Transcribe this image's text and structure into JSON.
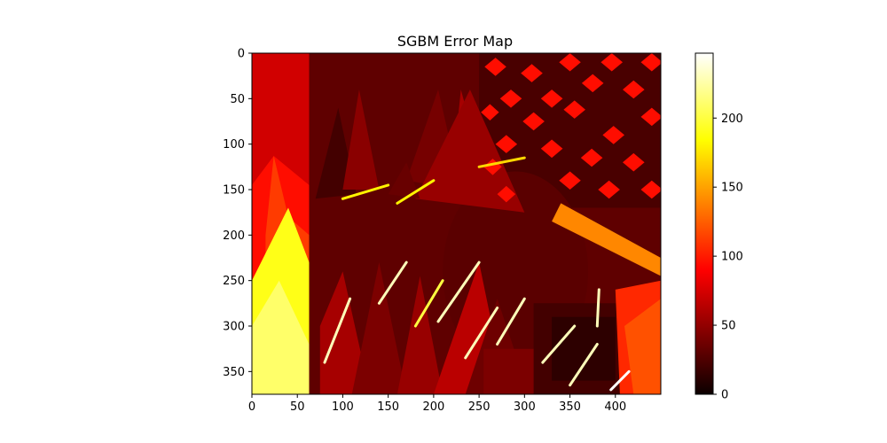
{
  "chart_data": {
    "type": "heatmap",
    "title": "SGBM Error Map",
    "xlabel": "",
    "ylabel": "",
    "image_size": {
      "width": 450,
      "height": 375
    },
    "xlim": [
      0,
      450
    ],
    "ylim": [
      375,
      0
    ],
    "xticks": [
      0,
      50,
      100,
      150,
      200,
      250,
      300,
      350,
      400
    ],
    "yticks": [
      0,
      50,
      100,
      150,
      200,
      250,
      300,
      350
    ],
    "colormap": "hot",
    "colormap_stops": [
      "#0b0000",
      "#ff0000",
      "#ffff00",
      "#ffffff"
    ],
    "colorbar": {
      "range": [
        0,
        247
      ],
      "ticks": [
        0,
        50,
        100,
        150,
        200
      ]
    },
    "regions": [
      {
        "name": "left-panel",
        "shape": "rect",
        "points": [
          [
            0,
            0
          ],
          [
            63,
            0
          ],
          [
            63,
            375
          ],
          [
            0,
            375
          ]
        ],
        "value": 70
      },
      {
        "name": "left-spike-orange",
        "shape": "poly",
        "points": [
          [
            0,
            145
          ],
          [
            24,
            113
          ],
          [
            63,
            145
          ],
          [
            63,
            250
          ],
          [
            0,
            250
          ]
        ],
        "value": 95
      },
      {
        "name": "left-spike-red",
        "shape": "poly",
        "points": [
          [
            15,
            200
          ],
          [
            24,
            113
          ],
          [
            40,
            180
          ],
          [
            63,
            200
          ],
          [
            63,
            290
          ],
          [
            15,
            290
          ]
        ],
        "value": 112
      },
      {
        "name": "left-yellow-low",
        "shape": "poly",
        "points": [
          [
            0,
            250
          ],
          [
            40,
            170
          ],
          [
            63,
            230
          ],
          [
            63,
            375
          ],
          [
            0,
            375
          ]
        ],
        "value": 190
      },
      {
        "name": "left-yellow-high",
        "shape": "poly",
        "points": [
          [
            0,
            300
          ],
          [
            30,
            250
          ],
          [
            63,
            320
          ],
          [
            63,
            375
          ],
          [
            0,
            375
          ]
        ],
        "value": 210
      },
      {
        "name": "background-dark",
        "shape": "rect",
        "points": [
          [
            63,
            0
          ],
          [
            450,
            0
          ],
          [
            450,
            375
          ],
          [
            63,
            375
          ]
        ],
        "value": 30
      },
      {
        "name": "upper-right-lattice-bg",
        "shape": "rect",
        "points": [
          [
            250,
            0
          ],
          [
            450,
            0
          ],
          [
            450,
            170
          ],
          [
            250,
            170
          ]
        ],
        "value": 22
      },
      {
        "name": "cone-1",
        "shape": "poly",
        "points": [
          [
            70,
            160
          ],
          [
            95,
            60
          ],
          [
            115,
            155
          ]
        ],
        "value": 20
      },
      {
        "name": "cone-2",
        "shape": "poly",
        "points": [
          [
            100,
            150
          ],
          [
            118,
            40
          ],
          [
            140,
            150
          ]
        ],
        "value": 45
      },
      {
        "name": "cone-3",
        "shape": "poly",
        "points": [
          [
            170,
            140
          ],
          [
            205,
            40
          ],
          [
            230,
            150
          ]
        ],
        "value": 38
      },
      {
        "name": "cone-4",
        "shape": "poly",
        "points": [
          [
            220,
            140
          ],
          [
            230,
            40
          ],
          [
            260,
            150
          ]
        ],
        "value": 55
      },
      {
        "name": "mask-oval",
        "shape": "ellipse",
        "center": [
          290,
          240
        ],
        "radii": [
          80,
          110
        ],
        "value": 28
      },
      {
        "name": "lower-cone-1",
        "shape": "poly",
        "points": [
          [
            75,
            375
          ],
          [
            75,
            300
          ],
          [
            100,
            240
          ],
          [
            130,
            375
          ]
        ],
        "value": 55
      },
      {
        "name": "lower-cone-2",
        "shape": "poly",
        "points": [
          [
            110,
            375
          ],
          [
            140,
            230
          ],
          [
            170,
            375
          ]
        ],
        "value": 40
      },
      {
        "name": "lower-cone-3",
        "shape": "poly",
        "points": [
          [
            160,
            375
          ],
          [
            185,
            245
          ],
          [
            210,
            375
          ]
        ],
        "value": 50
      },
      {
        "name": "lower-cone-4",
        "shape": "poly",
        "points": [
          [
            200,
            375
          ],
          [
            250,
            230
          ],
          [
            280,
            375
          ]
        ],
        "value": 62
      },
      {
        "name": "lower-center-cone",
        "shape": "poly",
        "points": [
          [
            235,
            375
          ],
          [
            270,
            270
          ],
          [
            305,
            375
          ]
        ],
        "value": 35
      },
      {
        "name": "bottom-box",
        "shape": "rect",
        "points": [
          [
            255,
            325
          ],
          [
            330,
            325
          ],
          [
            330,
            375
          ],
          [
            255,
            375
          ]
        ],
        "value": 40
      },
      {
        "name": "mug",
        "shape": "rect",
        "points": [
          [
            310,
            275
          ],
          [
            415,
            275
          ],
          [
            415,
            375
          ],
          [
            310,
            375
          ]
        ],
        "value": 20
      },
      {
        "name": "mug-shadow",
        "shape": "rect",
        "points": [
          [
            330,
            290
          ],
          [
            400,
            290
          ],
          [
            400,
            360
          ],
          [
            330,
            360
          ]
        ],
        "value": 12
      },
      {
        "name": "right-orange",
        "shape": "poly",
        "points": [
          [
            400,
            260
          ],
          [
            450,
            250
          ],
          [
            450,
            375
          ],
          [
            405,
            375
          ]
        ],
        "value": 105
      },
      {
        "name": "right-orange-hi",
        "shape": "poly",
        "points": [
          [
            410,
            300
          ],
          [
            450,
            270
          ],
          [
            450,
            375
          ],
          [
            420,
            375
          ]
        ],
        "value": 120
      },
      {
        "name": "upper-right-band",
        "shape": "poly",
        "points": [
          [
            340,
            165
          ],
          [
            450,
            225
          ],
          [
            450,
            245
          ],
          [
            330,
            185
          ]
        ],
        "value": 140
      },
      {
        "name": "upper-cone-red",
        "shape": "poly",
        "points": [
          [
            180,
            160
          ],
          [
            240,
            40
          ],
          [
            300,
            175
          ]
        ],
        "value": 50
      },
      {
        "name": "mask-upper-cone",
        "shape": "poly",
        "points": [
          [
            150,
            155
          ],
          [
            170,
            120
          ],
          [
            185,
            160
          ]
        ],
        "value": 33
      },
      {
        "name": "lattice-1",
        "shape": "diamond",
        "center": [
          268,
          15
        ],
        "radii": [
          12,
          10
        ],
        "value": 95
      },
      {
        "name": "lattice-2",
        "shape": "diamond",
        "center": [
          308,
          22
        ],
        "radii": [
          12,
          10
        ],
        "value": 95
      },
      {
        "name": "lattice-3",
        "shape": "diamond",
        "center": [
          350,
          10
        ],
        "radii": [
          12,
          10
        ],
        "value": 95
      },
      {
        "name": "lattice-4",
        "shape": "diamond",
        "center": [
          396,
          10
        ],
        "radii": [
          12,
          10
        ],
        "value": 95
      },
      {
        "name": "lattice-5",
        "shape": "diamond",
        "center": [
          440,
          10
        ],
        "radii": [
          12,
          10
        ],
        "value": 95
      },
      {
        "name": "lattice-6",
        "shape": "diamond",
        "center": [
          285,
          50
        ],
        "radii": [
          12,
          10
        ],
        "value": 95
      },
      {
        "name": "lattice-7",
        "shape": "diamond",
        "center": [
          330,
          50
        ],
        "radii": [
          12,
          10
        ],
        "value": 95
      },
      {
        "name": "lattice-8",
        "shape": "diamond",
        "center": [
          375,
          33
        ],
        "radii": [
          12,
          10
        ],
        "value": 95
      },
      {
        "name": "lattice-9",
        "shape": "diamond",
        "center": [
          420,
          40
        ],
        "radii": [
          12,
          10
        ],
        "value": 95
      },
      {
        "name": "lattice-10",
        "shape": "diamond",
        "center": [
          262,
          65
        ],
        "radii": [
          10,
          9
        ],
        "value": 95
      },
      {
        "name": "lattice-11",
        "shape": "diamond",
        "center": [
          310,
          75
        ],
        "radii": [
          12,
          10
        ],
        "value": 95
      },
      {
        "name": "lattice-12",
        "shape": "diamond",
        "center": [
          355,
          62
        ],
        "radii": [
          12,
          10
        ],
        "value": 95
      },
      {
        "name": "lattice-13",
        "shape": "diamond",
        "center": [
          398,
          90
        ],
        "radii": [
          12,
          10
        ],
        "value": 95
      },
      {
        "name": "lattice-14",
        "shape": "diamond",
        "center": [
          440,
          70
        ],
        "radii": [
          12,
          10
        ],
        "value": 95
      },
      {
        "name": "lattice-15",
        "shape": "diamond",
        "center": [
          280,
          100
        ],
        "radii": [
          12,
          10
        ],
        "value": 95
      },
      {
        "name": "lattice-16",
        "shape": "diamond",
        "center": [
          330,
          105
        ],
        "radii": [
          12,
          10
        ],
        "value": 95
      },
      {
        "name": "lattice-17",
        "shape": "diamond",
        "center": [
          374,
          115
        ],
        "radii": [
          12,
          10
        ],
        "value": 95
      },
      {
        "name": "lattice-18",
        "shape": "diamond",
        "center": [
          420,
          120
        ],
        "radii": [
          12,
          10
        ],
        "value": 95
      },
      {
        "name": "lattice-19",
        "shape": "diamond",
        "center": [
          265,
          125
        ],
        "radii": [
          10,
          9
        ],
        "value": 95
      },
      {
        "name": "lattice-20",
        "shape": "diamond",
        "center": [
          350,
          140
        ],
        "radii": [
          12,
          10
        ],
        "value": 95
      },
      {
        "name": "lattice-21",
        "shape": "diamond",
        "center": [
          393,
          150
        ],
        "radii": [
          12,
          10
        ],
        "value": 95
      },
      {
        "name": "lattice-22",
        "shape": "diamond",
        "center": [
          440,
          150
        ],
        "radii": [
          12,
          10
        ],
        "value": 95
      },
      {
        "name": "lattice-23",
        "shape": "diamond",
        "center": [
          280,
          155
        ],
        "radii": [
          10,
          9
        ],
        "value": 95
      },
      {
        "name": "edge-1",
        "shape": "line",
        "points": [
          [
            80,
            340
          ],
          [
            108,
            270
          ]
        ],
        "value": 230
      },
      {
        "name": "edge-2",
        "shape": "line",
        "points": [
          [
            140,
            275
          ],
          [
            170,
            230
          ]
        ],
        "value": 230
      },
      {
        "name": "edge-3",
        "shape": "line",
        "points": [
          [
            205,
            295
          ],
          [
            250,
            230
          ]
        ],
        "value": 230
      },
      {
        "name": "edge-4",
        "shape": "line",
        "points": [
          [
            235,
            335
          ],
          [
            270,
            280
          ]
        ],
        "value": 230
      },
      {
        "name": "edge-5",
        "shape": "line",
        "points": [
          [
            270,
            320
          ],
          [
            300,
            270
          ]
        ],
        "value": 230
      },
      {
        "name": "edge-6",
        "shape": "line",
        "points": [
          [
            320,
            340
          ],
          [
            355,
            300
          ]
        ],
        "value": 230
      },
      {
        "name": "edge-7",
        "shape": "line",
        "points": [
          [
            350,
            365
          ],
          [
            380,
            320
          ]
        ],
        "value": 230
      },
      {
        "name": "edge-8",
        "shape": "line",
        "points": [
          [
            395,
            370
          ],
          [
            415,
            350
          ]
        ],
        "value": 250
      },
      {
        "name": "edge-9",
        "shape": "line",
        "points": [
          [
            380,
            300
          ],
          [
            382,
            260
          ]
        ],
        "value": 230
      },
      {
        "name": "edge-10",
        "shape": "line",
        "points": [
          [
            100,
            160
          ],
          [
            150,
            145
          ]
        ],
        "value": 180
      },
      {
        "name": "edge-11",
        "shape": "line",
        "points": [
          [
            160,
            165
          ],
          [
            200,
            140
          ]
        ],
        "value": 180
      },
      {
        "name": "edge-12",
        "shape": "line",
        "points": [
          [
            250,
            125
          ],
          [
            300,
            115
          ]
        ],
        "value": 170
      },
      {
        "name": "edge-13",
        "shape": "line",
        "points": [
          [
            180,
            300
          ],
          [
            210,
            250
          ]
        ],
        "value": 200
      }
    ]
  }
}
